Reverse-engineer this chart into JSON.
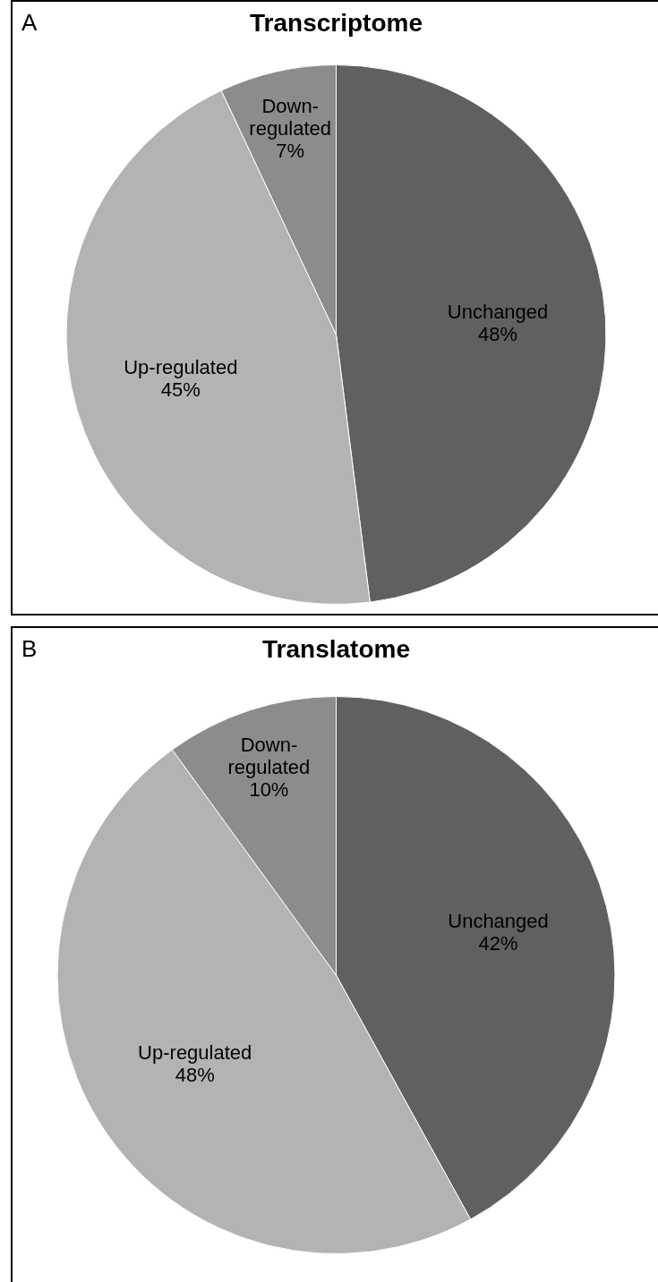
{
  "chart_data": [
    {
      "type": "pie",
      "title": "Transcriptome",
      "annotations": [
        "A"
      ],
      "categories": [
        "Unchanged",
        "Up-regulated",
        "Down-regulated"
      ],
      "values": [
        48,
        45,
        7
      ],
      "value_labels": [
        "48%",
        "45%",
        "7%"
      ],
      "colors": [
        "#606060",
        "#b3b3b3",
        "#8c8c8c"
      ],
      "legend": false
    },
    {
      "type": "pie",
      "title": "Translatome",
      "annotations": [
        "B"
      ],
      "categories": [
        "Unchanged",
        "Up-regulated",
        "Down-regulated"
      ],
      "values": [
        42,
        48,
        10
      ],
      "value_labels": [
        "42%",
        "48%",
        "10%"
      ],
      "colors": [
        "#606060",
        "#b3b3b3",
        "#8c8c8c"
      ],
      "legend": false
    }
  ]
}
